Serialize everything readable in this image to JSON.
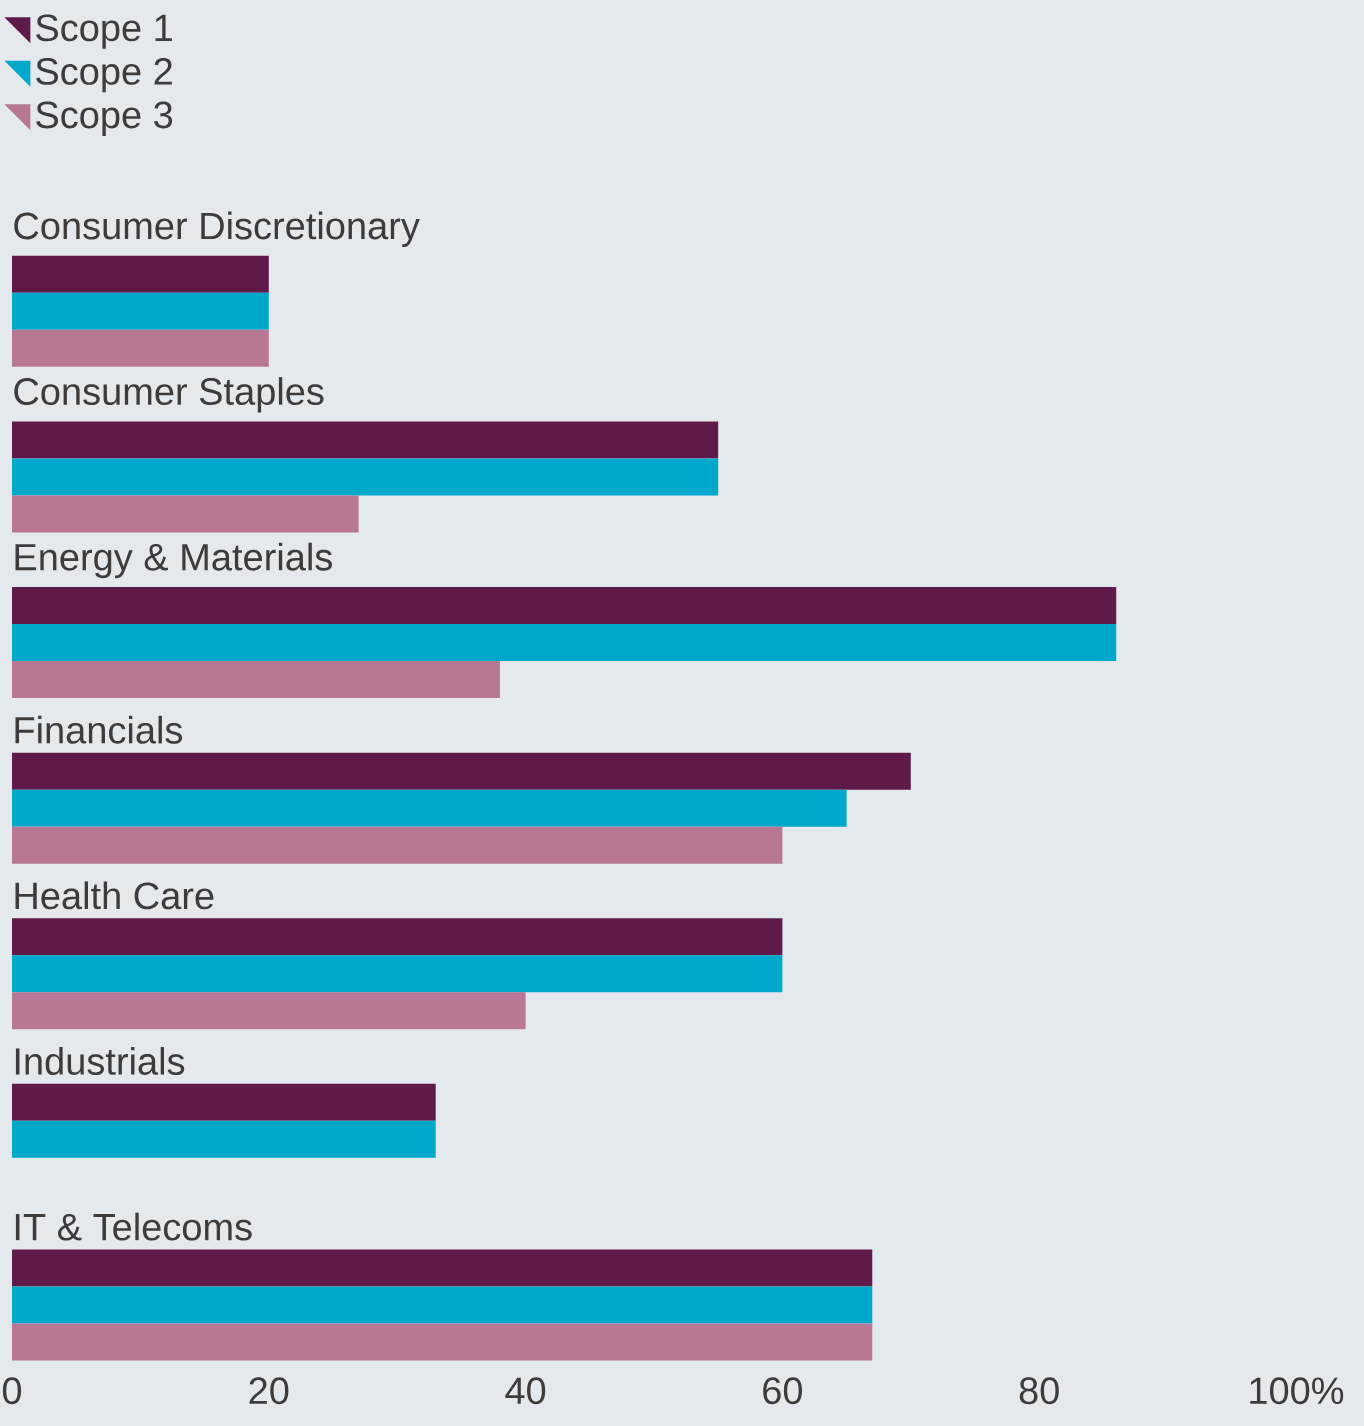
{
  "chart_data": {
    "type": "bar",
    "orientation": "horizontal",
    "categories": [
      "Consumer Discretionary",
      "Consumer Staples",
      "Energy & Materials",
      "Financials",
      "Health Care",
      "Industrials",
      "IT & Telecoms"
    ],
    "series": [
      {
        "name": "Scope 1",
        "color": "#5f1a4a",
        "values": [
          20,
          55,
          86,
          70,
          60,
          33,
          67
        ]
      },
      {
        "name": "Scope 2",
        "color": "#00a8cc",
        "values": [
          20,
          55,
          86,
          65,
          60,
          33,
          67
        ]
      },
      {
        "name": "Scope 3",
        "color": "#b87795",
        "values": [
          20,
          27,
          38,
          60,
          40,
          0,
          67
        ]
      }
    ],
    "xlim": [
      0,
      100
    ],
    "xticks": [
      0,
      20,
      40,
      60,
      80,
      {
        "value": 100,
        "label": "100%"
      }
    ],
    "legend": "top left",
    "grid": false
  }
}
